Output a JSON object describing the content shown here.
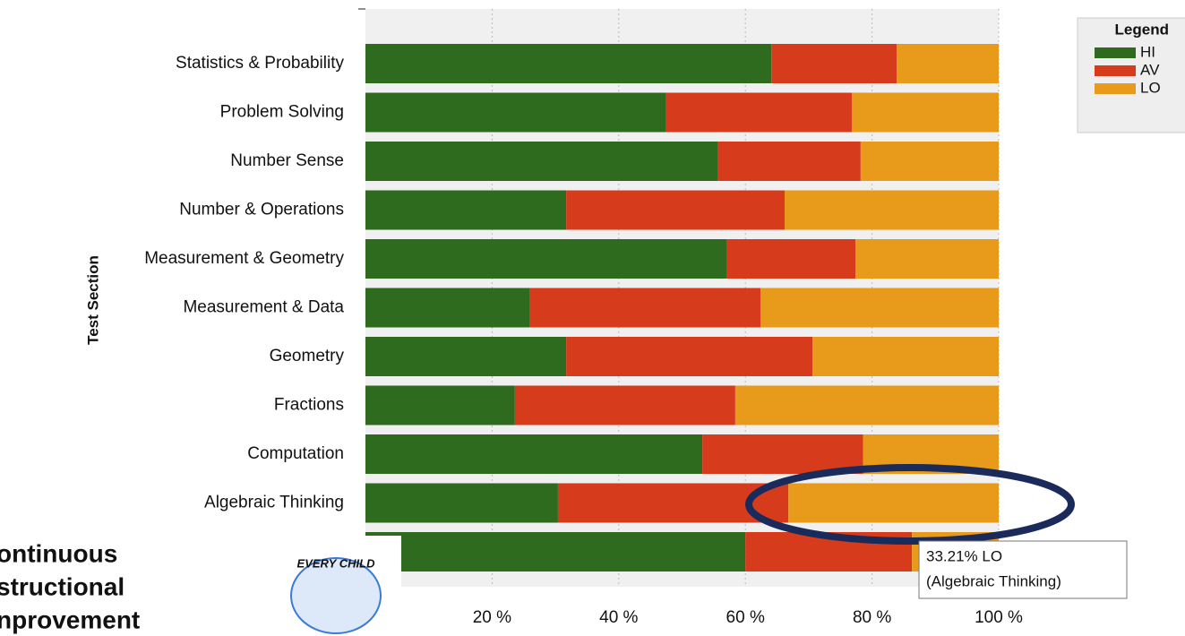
{
  "chart_data": {
    "type": "stacked-barh",
    "y_label": "Test Section",
    "categories": [
      "Statistics & Probability",
      "Problem Solving",
      "Number Sense",
      "Number & Operations",
      "Measurement & Geometry",
      "Measurement & Data",
      "Geometry",
      "Fractions",
      "Computation",
      "Algebraic Thinking",
      null
    ],
    "series": [
      {
        "name": "HI",
        "color": "#2e6b1f",
        "values": [
          64.1,
          47.5,
          55.7,
          31.7,
          57.0,
          26.0,
          31.7,
          23.6,
          53.2,
          30.4,
          60.0
        ]
      },
      {
        "name": "AV",
        "color": "#d63c1c",
        "values": [
          19.8,
          29.3,
          22.5,
          34.5,
          20.4,
          36.4,
          38.9,
          34.8,
          25.4,
          36.39,
          26.3
        ]
      },
      {
        "name": "LO",
        "color": "#e89a1a",
        "values": [
          16.1,
          23.2,
          21.8,
          33.8,
          22.6,
          37.6,
          29.4,
          41.6,
          21.4,
          33.21,
          13.7
        ]
      }
    ],
    "xlim": [
      0,
      100
    ],
    "xticks": [
      {
        "value": 20,
        "label": "20 %"
      },
      {
        "value": 40,
        "label": "40 %"
      },
      {
        "value": 60,
        "label": "60 %"
      },
      {
        "value": 80,
        "label": "80 %"
      },
      {
        "value": 100,
        "label": "100 %"
      }
    ],
    "grid": true,
    "legend_title": "Legend",
    "legend_position": "right"
  },
  "tooltip": {
    "lines": [
      "33.21% LO",
      "(Algebraic Thinking)"
    ]
  },
  "logo": {
    "lines": [
      "ontinuous",
      "structional",
      "nprovement"
    ],
    "badge": "EVERY CHILD"
  }
}
